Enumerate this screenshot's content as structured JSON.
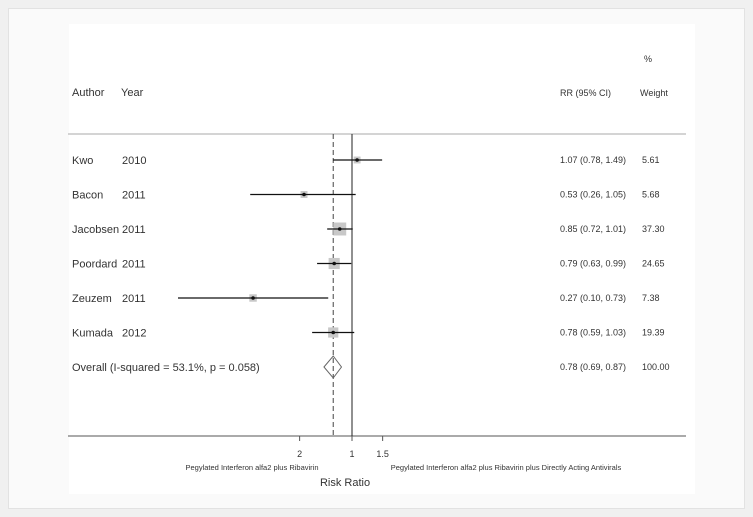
{
  "header": {
    "author": "Author",
    "year": "Year",
    "rr": "RR (95% CI)",
    "weight_pct": "%",
    "weight": "Weight"
  },
  "colors": {
    "ci_line": "#111111",
    "weight_box": "#c8c8c8",
    "null_line": "#222222",
    "overall_line": "#444444",
    "diamond": "#666666"
  },
  "chart_data": {
    "type": "forest",
    "xlabel": "Risk Ratio",
    "x_ticks": [
      {
        "label": "2",
        "value": 2
      },
      {
        "label": "1",
        "value": 1
      },
      {
        "label": "1.5",
        "value": 1.5
      }
    ],
    "favors_left": "Pegylated Interferon alfa2 plus Ribavirin",
    "favors_right": "Pegylated Interferon alfa2 plus Ribavirin plus Directly Acting Antivirals",
    "null_value": 1,
    "overall_value": 0.78,
    "studies": [
      {
        "author": "Kwo",
        "year": "2010",
        "rr": 1.07,
        "lo": 0.78,
        "hi": 1.49,
        "rr_ci": "1.07 (0.78, 1.49)",
        "weight": "5.61"
      },
      {
        "author": "Bacon",
        "year": "2011",
        "rr": 0.53,
        "lo": 0.26,
        "hi": 1.05,
        "rr_ci": "0.53 (0.26, 1.05)",
        "weight": "5.68"
      },
      {
        "author": "Jacobsen",
        "year": "2011",
        "rr": 0.85,
        "lo": 0.72,
        "hi": 1.01,
        "rr_ci": "0.85 (0.72, 1.01)",
        "weight": "37.30"
      },
      {
        "author": "Poordard",
        "year": "2011",
        "rr": 0.79,
        "lo": 0.63,
        "hi": 0.99,
        "rr_ci": "0.79 (0.63, 0.99)",
        "weight": "24.65"
      },
      {
        "author": "Zeuzem",
        "year": "2011",
        "rr": 0.27,
        "lo": 0.1,
        "hi": 0.73,
        "rr_ci": "0.27 (0.10, 0.73)",
        "weight": "7.38"
      },
      {
        "author": "Kumada",
        "year": "2012",
        "rr": 0.78,
        "lo": 0.59,
        "hi": 1.03,
        "rr_ci": "0.78 (0.59, 1.03)",
        "weight": "19.39"
      }
    ],
    "overall": {
      "label": "Overall  (I-squared = 53.1%, p = 0.058)",
      "rr": 0.78,
      "lo": 0.69,
      "hi": 0.87,
      "rr_ci": "0.78 (0.69, 0.87)",
      "weight": "100.00"
    }
  }
}
